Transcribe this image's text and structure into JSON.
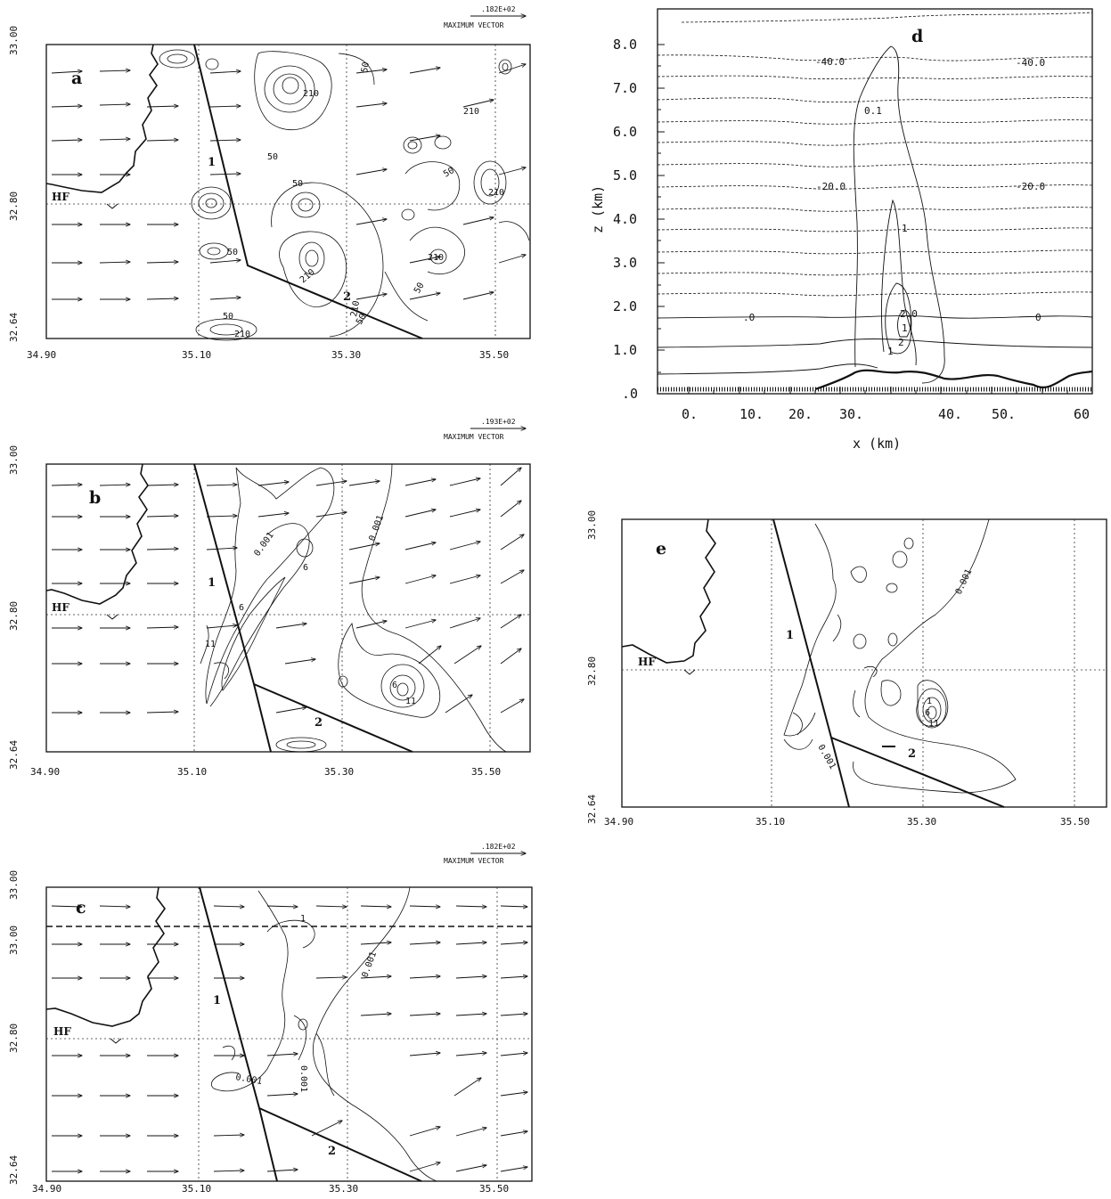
{
  "figure": {
    "panels": [
      {
        "id": "a",
        "letter": "a",
        "max_vector": {
          "value": ".182E+02",
          "label": "MAXIMUM VECTOR"
        },
        "lat_ticks": [
          "33.00",
          "32.80",
          "32.64"
        ],
        "lon_ticks": [
          "34.90",
          "35.10",
          "35.30",
          "35.50"
        ],
        "station": "HF",
        "line_labels": [
          "1",
          "2"
        ],
        "contour_labels": [
          "50",
          "210",
          "210",
          "50",
          "50",
          "50",
          "210",
          "50",
          "210",
          "210",
          "50",
          "50",
          "50",
          "210",
          "210"
        ]
      },
      {
        "id": "b",
        "letter": "b",
        "max_vector": {
          "value": ".193E+02",
          "label": "MAXIMUM VECTOR"
        },
        "lat_ticks": [
          "33.00",
          "32.80",
          "32.64"
        ],
        "lon_ticks": [
          "34.90",
          "35.10",
          "35.30",
          "35.50"
        ],
        "station": "HF",
        "line_labels": [
          "1",
          "2"
        ],
        "contour_labels": [
          "0.001",
          "6",
          "6",
          "11",
          "0.001",
          "6",
          "11"
        ]
      },
      {
        "id": "c",
        "letter": "c",
        "max_vector": {
          "value": ".182E+02",
          "label": "MAXIMUM VECTOR"
        },
        "lat_ticks": [
          "33.00",
          "33.00",
          "32.80",
          "32.64"
        ],
        "lon_ticks": [
          "34.90",
          "35.10",
          "35.30",
          "35.50"
        ],
        "station": "HF",
        "line_labels": [
          "1",
          "2"
        ],
        "contour_labels": [
          "1",
          "0.001",
          "0.001",
          "0.001"
        ]
      },
      {
        "id": "e",
        "letter": "e",
        "lat_ticks": [
          "33.00",
          "32.80",
          "32.64"
        ],
        "lon_ticks": [
          "34.90",
          "35.10",
          "35.30",
          "35.50"
        ],
        "station": "HF",
        "line_labels": [
          "1",
          "2"
        ],
        "contour_labels": [
          "0.001",
          "1",
          "6",
          "11",
          "0.001"
        ]
      }
    ],
    "cross_section": {
      "id": "d",
      "letter": "d",
      "xlabel": "x (km)",
      "ylabel": "z (km)",
      "x_ticks": [
        "0.",
        "10.",
        "20.",
        "30.",
        "40.",
        "50.",
        "60"
      ],
      "z_ticks": [
        ".0",
        "1.0",
        "2.0",
        "3.0",
        "4.0",
        "5.0",
        "6.0",
        "7.0",
        "8.0"
      ],
      "contour_labels": [
        "-40.0",
        "-40.0",
        "0.1",
        "-20.0",
        "-20.0",
        "1",
        "2.0",
        ".0",
        "0",
        "1",
        "2",
        "1"
      ]
    }
  }
}
